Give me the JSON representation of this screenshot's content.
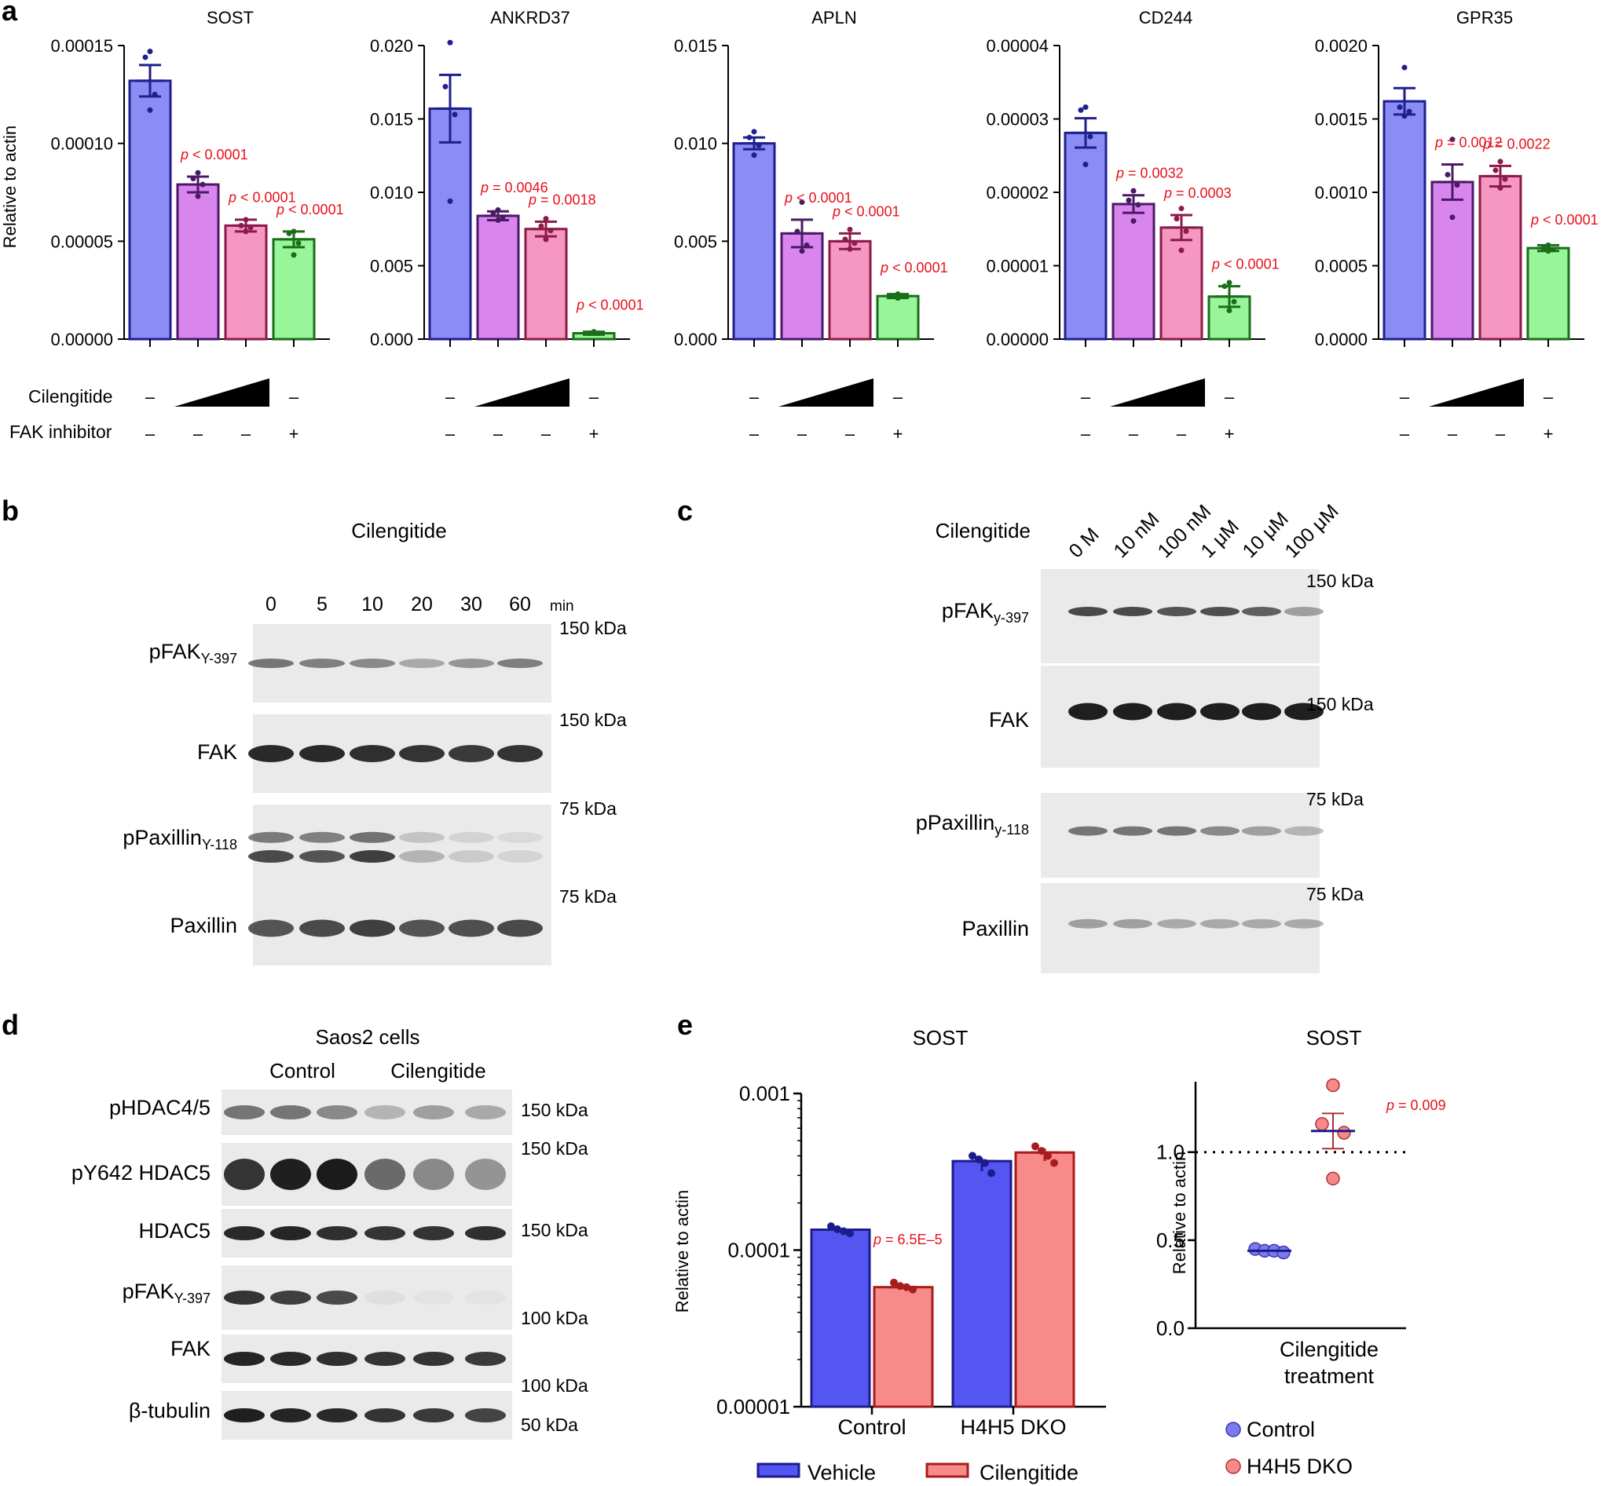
{
  "panel_labels": [
    "a",
    "b",
    "c",
    "d",
    "e"
  ],
  "panel_a": {
    "ylabel": "Relative to actin",
    "row_labels": {
      "cilengitide": "Cilengitide",
      "fak": "FAK inhibitor"
    },
    "sign_rows": {
      "cilengitide": [
        "–",
        "",
        "",
        "–"
      ],
      "fak": [
        "–",
        "–",
        "–",
        "+"
      ]
    },
    "charts": [
      {
        "title": "SOST",
        "ticks": [
          "0.00015",
          "0.00010",
          "0.00005",
          "0.00000"
        ],
        "ylim": [
          0,
          0.00015
        ],
        "values": [
          0.000132,
          7.9e-05,
          5.8e-05,
          5.1e-05
        ],
        "sem": [
          8e-06,
          4e-06,
          3e-06,
          4e-06
        ],
        "dots": [
          [
            0.000147,
            0.000144,
            0.000125,
            0.000117
          ],
          [
            8.5e-05,
            8.2e-05,
            7.9e-05,
            7.3e-05
          ],
          [
            6.1e-05,
            5.8e-05,
            5.7e-05,
            5.5e-05
          ],
          [
            5.5e-05,
            5.4e-05,
            4.9e-05,
            4.3e-05
          ]
        ],
        "pvals": [
          "p < 0.0001",
          "p < 0.0001",
          "p < 0.0001"
        ]
      },
      {
        "title": "ANKRD37",
        "ticks": [
          "0.020",
          "0.015",
          "0.010",
          "0.005",
          "0.000"
        ],
        "ylim": [
          0,
          0.02
        ],
        "values": [
          0.0157,
          0.0084,
          0.0075,
          0.0004
        ],
        "sem": [
          0.0023,
          0.0003,
          0.0005,
          0.0001
        ],
        "dots": [
          [
            0.0202,
            0.0172,
            0.0153,
            0.0094
          ],
          [
            0.0088,
            0.0086,
            0.0083,
            0.0081
          ],
          [
            0.0082,
            0.0077,
            0.0074,
            0.0068
          ],
          [
            0.0005,
            0.0004,
            0.0004,
            0.0004
          ]
        ],
        "pvals": [
          "p = 0.0046",
          "p = 0.0018",
          "p < 0.0001"
        ]
      },
      {
        "title": "APLN",
        "ticks": [
          "0.015",
          "0.010",
          "0.005",
          "0.000"
        ],
        "ylim": [
          0,
          0.015
        ],
        "values": [
          0.01,
          0.0054,
          0.005,
          0.0022
        ],
        "sem": [
          0.0003,
          0.0007,
          0.0004,
          0.0001
        ],
        "dots": [
          [
            0.0106,
            0.0103,
            0.0099,
            0.0094
          ],
          [
            0.007,
            0.0055,
            0.0048,
            0.0045
          ],
          [
            0.0056,
            0.0051,
            0.0049,
            0.0046
          ],
          [
            0.0023,
            0.0022,
            0.0022,
            0.0021
          ]
        ],
        "pvals": [
          "p < 0.0001",
          "p < 0.0001",
          "p < 0.0001"
        ]
      },
      {
        "title": "CD244",
        "ticks": [
          "0.00004",
          "0.00003",
          "0.00002",
          "0.00001",
          "0.00000"
        ],
        "ylim": [
          0,
          4e-05
        ],
        "values": [
          2.81e-05,
          1.84e-05,
          1.52e-05,
          5.8e-06
        ],
        "sem": [
          2e-06,
          1.2e-06,
          1.7e-06,
          1.4e-06
        ],
        "dots": [
          [
            3.16e-05,
            3.12e-05,
            2.76e-05,
            2.38e-05
          ],
          [
            2.02e-05,
            1.89e-05,
            1.83e-05,
            1.61e-05
          ],
          [
            1.78e-05,
            1.64e-05,
            1.47e-05,
            1.21e-05
          ],
          [
            7.7e-06,
            7.2e-06,
            5.1e-06,
            3.9e-06
          ]
        ],
        "pvals": [
          "p = 0.0032",
          "p = 0.0003",
          "p < 0.0001"
        ]
      },
      {
        "title": "GPR35",
        "ticks": [
          "0.0020",
          "0.0015",
          "0.0010",
          "0.0005",
          "0.0000"
        ],
        "ylim": [
          0,
          0.002
        ],
        "values": [
          0.00162,
          0.00107,
          0.00111,
          0.00062
        ],
        "sem": [
          9e-05,
          0.00012,
          7e-05,
          2e-05
        ],
        "dots": [
          [
            0.00185,
            0.00158,
            0.00155,
            0.00152
          ],
          [
            0.00136,
            0.00112,
            0.00105,
            0.00083
          ],
          [
            0.00121,
            0.00115,
            0.00109,
            0.00103
          ],
          [
            0.00064,
            0.00062,
            0.00061,
            0.0006
          ]
        ],
        "pvals": [
          "p = 0.0012",
          "p = 0.0022",
          "p < 0.0001"
        ]
      }
    ]
  },
  "panel_b": {
    "title": "Cilengitide",
    "timepoints": [
      "0",
      "5",
      "10",
      "20",
      "30",
      "60"
    ],
    "unit": "min",
    "rows": [
      {
        "label": "pFAK",
        "sub": "Y-397",
        "kda": "150 kDa"
      },
      {
        "label": "FAK",
        "sub": "",
        "kda": "150 kDa"
      },
      {
        "label": "pPaxillin",
        "sub": "Y-118",
        "kda": "75 kDa"
      },
      {
        "label": "Paxillin",
        "sub": "",
        "kda": "75 kDa"
      }
    ]
  },
  "panel_c": {
    "title": "Cilengitide",
    "doses": [
      "0 M",
      "10 nM",
      "100 nM",
      "1 μM",
      "10 μM",
      "100 μM"
    ],
    "rows": [
      {
        "label": "pFAK",
        "sub": "y-397",
        "kda": "150 kDa"
      },
      {
        "label": "FAK",
        "sub": "",
        "kda": "150 kDa"
      },
      {
        "label": "pPaxillin",
        "sub": "y-118",
        "kda": "75 kDa"
      },
      {
        "label": "Paxillin",
        "sub": "",
        "kda": "75 kDa"
      }
    ]
  },
  "panel_d": {
    "title": "Saos2 cells",
    "groups": [
      "Control",
      "Cilengitide"
    ],
    "rows": [
      {
        "label": "pHDAC4/5",
        "sub": ""
      },
      {
        "label": "pY642 HDAC5",
        "sub": ""
      },
      {
        "label": "HDAC5",
        "sub": ""
      },
      {
        "label": "pFAK",
        "sub": "Y-397"
      },
      {
        "label": "FAK",
        "sub": ""
      },
      {
        "label": "β-tubulin",
        "sub": ""
      }
    ],
    "kda": [
      "150 kDa",
      "150 kDa",
      "150 kDa",
      "100 kDa",
      "100 kDa",
      "50 kDa"
    ]
  },
  "panel_e": {
    "chart_data": [
      {
        "type": "bar",
        "title": "SOST",
        "ylabel": "Relative to actin",
        "yscale": "log",
        "ylim": [
          1e-05,
          0.001
        ],
        "ticks": [
          "0.001",
          "0.0001",
          "0.00001"
        ],
        "categories": [
          "Control",
          "H4H5 DKO"
        ],
        "series": [
          {
            "name": "Vehicle",
            "color": "#5555f2",
            "edge": "#1c1c8c",
            "values": [
              0.000135,
              0.00037
            ],
            "dots": [
              [
                0.000142,
                0.000136,
                0.000132,
                0.000128
              ],
              [
                0.0004,
                0.00038,
                0.00036,
                0.00031
              ]
            ]
          },
          {
            "name": "Cilengitide",
            "color": "#f98a8a",
            "edge": "#a81c1c",
            "values": [
              5.8e-05,
              0.00042
            ],
            "dots": [
              [
                6.2e-05,
                5.9e-05,
                5.8e-05,
                5.6e-05
              ],
              [
                0.00046,
                0.00043,
                0.0004,
                0.00036
              ]
            ]
          }
        ],
        "pval": "p = 6.5E–5"
      },
      {
        "type": "scatter",
        "title": "SOST",
        "ylabel": "Relative to actin",
        "ylim": [
          0,
          1.4
        ],
        "ticks": [
          "1.0",
          "0.5",
          "0.0"
        ],
        "xlabel": [
          "Cilengitide",
          "treatment"
        ],
        "series": [
          {
            "name": "Control",
            "color": "#7b7bef",
            "edge": "#3a3ab0",
            "mean": 0.44,
            "values": [
              0.45,
              0.44,
              0.44,
              0.43
            ]
          },
          {
            "name": "H4H5 DKO",
            "color": "#f48a8a",
            "edge": "#b03030",
            "mean": 1.12,
            "values": [
              1.38,
              1.16,
              1.11,
              0.85
            ],
            "sem": 0.1
          }
        ],
        "refline": 1.0,
        "pval": "p = 0.009"
      }
    ]
  },
  "colors": {
    "bars": [
      "#8c8cf5",
      "#d985ee",
      "#f597c0",
      "#99f59a"
    ],
    "edges": [
      "#1f1f8f",
      "#4a1a66",
      "#8c1a4a",
      "#1a6e1a"
    ],
    "pval": "#e8101a"
  }
}
